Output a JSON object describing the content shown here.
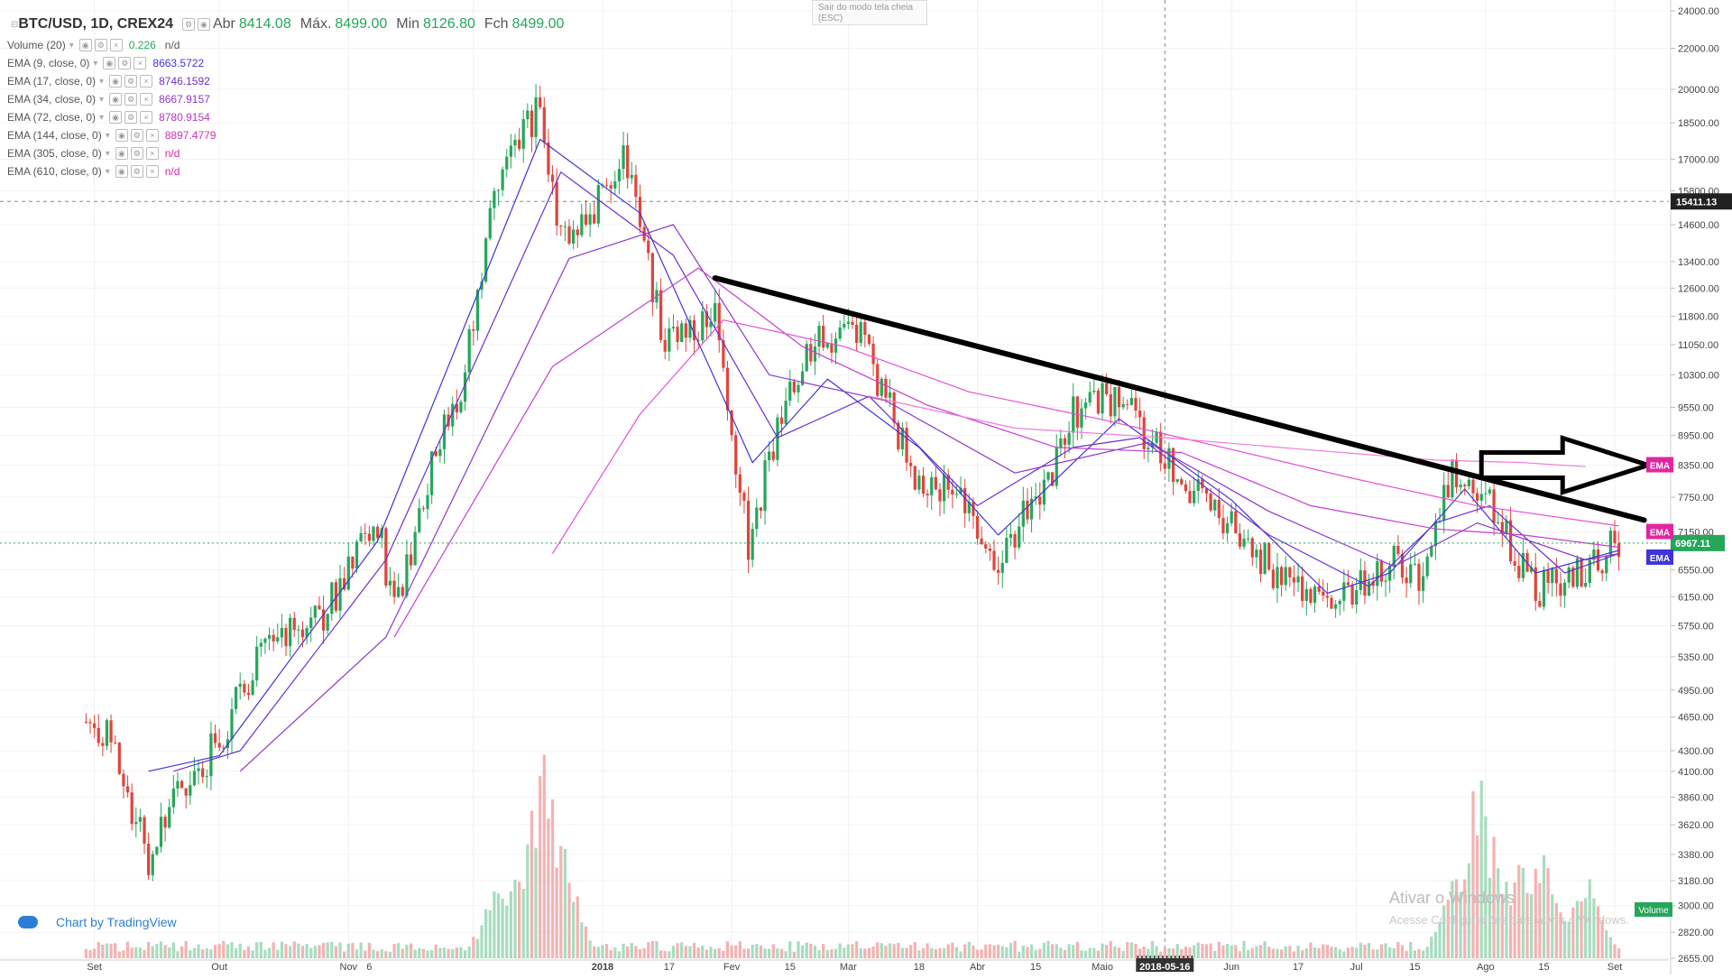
{
  "header": {
    "symbol": "BTC/USD, 1D, CREX24",
    "open_label": "Abr",
    "open_value": "8414.08",
    "high_label": "Máx.",
    "high_value": "8499.00",
    "low_label": "Min",
    "low_value": "8126.80",
    "close_label": "Fch",
    "close_value": "8499.00"
  },
  "indicators": [
    {
      "label": "Volume (20)",
      "value": "0.226",
      "extra": "n/d",
      "color": "#26a65b"
    },
    {
      "label": "EMA (9, close, 0)",
      "value": "8663.5722",
      "color": "#3f35d6"
    },
    {
      "label": "EMA (17, close, 0)",
      "value": "8746.1592",
      "color": "#6d2fd1"
    },
    {
      "label": "EMA (34, close, 0)",
      "value": "8667.9157",
      "color": "#8c37c9"
    },
    {
      "label": "EMA (72, close, 0)",
      "value": "8780.9154",
      "color": "#b437c4"
    },
    {
      "label": "EMA (144, close, 0)",
      "value": "8897.4779",
      "color": "#d22fb3"
    },
    {
      "label": "EMA (305, close, 0)",
      "value": "n/d",
      "color": "#e0269f"
    },
    {
      "label": "EMA (610, close, 0)",
      "value": "n/d",
      "color": "#e0269f"
    }
  ],
  "fullscreen_hint": "Sair do modo tela cheia (ESC)",
  "brand": "Chart by TradingView",
  "watermark": {
    "line1": "Ativar o Windows",
    "line2": "Acesse Configurações para ativar o Windows."
  },
  "colors": {
    "up": "#26a65b",
    "down": "#e0443b",
    "vol_up": "#a8dcbf",
    "vol_down": "#f4b2b2",
    "crosshair_price": "#222222",
    "current_price": "#26a65b"
  },
  "chart_data": {
    "type": "candlestick",
    "title": "BTC/USD, 1D, CREX24",
    "x_ticks": [
      "Set",
      "Out",
      "Nov",
      "6",
      "2018",
      "17",
      "Fev",
      "15",
      "Mar",
      "18",
      "Abr",
      "15",
      "Maio",
      "2018-05-16",
      "Jun",
      "17",
      "Jul",
      "15",
      "Ago",
      "15",
      "Set"
    ],
    "y_ticks": [
      "24000.00",
      "22000.00",
      "20000.00",
      "18500.00",
      "17000.00",
      "15800.00",
      "14600.00",
      "13400.00",
      "12600.00",
      "11800.00",
      "11050.00",
      "10300.00",
      "9550.00",
      "8950.00",
      "8350.00",
      "7750.00",
      "7150.00",
      "6550.00",
      "6150.00",
      "5750.00",
      "5350.00",
      "4950.00",
      "4650.00",
      "4300.00",
      "4100.00",
      "3860.00",
      "3620.00",
      "3380.00",
      "3180.00",
      "3000.00",
      "2820.00",
      "2655.00"
    ],
    "y_scale": "log",
    "ylim": [
      2655,
      24000
    ],
    "crosshair_price": "15411.13",
    "current_price": "6967.11",
    "badges": [
      "EMA",
      "EMA",
      "EMA",
      "Volume"
    ],
    "anchors": [
      [
        "2017-08-30",
        4600
      ],
      [
        "2017-09-05",
        4500
      ],
      [
        "2017-09-14",
        3300
      ],
      [
        "2017-09-20",
        3850
      ],
      [
        "2017-09-30",
        4350
      ],
      [
        "2017-10-13",
        5600
      ],
      [
        "2017-10-25",
        5800
      ],
      [
        "2017-11-08",
        7300
      ],
      [
        "2017-11-12",
        5900
      ],
      [
        "2017-11-20",
        8100
      ],
      [
        "2017-11-28",
        10000
      ],
      [
        "2017-12-07",
        16500
      ],
      [
        "2017-12-17",
        19300
      ],
      [
        "2017-12-22",
        14000
      ],
      [
        "2017-12-28",
        14600
      ],
      [
        "2018-01-06",
        17100
      ],
      [
        "2018-01-16",
        11200
      ],
      [
        "2018-01-28",
        11700
      ],
      [
        "2018-02-05",
        6900
      ],
      [
        "2018-02-10",
        8500
      ],
      [
        "2018-02-20",
        11100
      ],
      [
        "2018-03-04",
        11400
      ],
      [
        "2018-03-17",
        8100
      ],
      [
        "2018-03-27",
        7900
      ],
      [
        "2018-04-06",
        6700
      ],
      [
        "2018-04-18",
        8100
      ],
      [
        "2018-04-24",
        9500
      ],
      [
        "2018-05-05",
        9800
      ],
      [
        "2018-05-16",
        8500
      ],
      [
        "2018-05-29",
        7400
      ],
      [
        "2018-06-12",
        6500
      ],
      [
        "2018-06-24",
        5900
      ],
      [
        "2018-07-09",
        6700
      ],
      [
        "2018-07-16",
        6400
      ],
      [
        "2018-07-24",
        8200
      ],
      [
        "2018-08-02",
        7700
      ],
      [
        "2018-08-13",
        6200
      ],
      [
        "2018-08-28",
        6700
      ],
      [
        "2018-09-02",
        7050
      ]
    ],
    "ema_lines": [
      {
        "label": "EMA 9",
        "points": [
          [
            "2017-09-14",
            4100
          ],
          [
            "2017-10-01",
            4250
          ],
          [
            "2017-11-08",
            7000
          ],
          [
            "2017-12-17",
            17800
          ],
          [
            "2018-01-10",
            15000
          ],
          [
            "2018-02-06",
            8400
          ],
          [
            "2018-02-24",
            10200
          ],
          [
            "2018-03-18",
            8700
          ],
          [
            "2018-04-06",
            7100
          ],
          [
            "2018-05-05",
            9300
          ],
          [
            "2018-06-01",
            7700
          ],
          [
            "2018-06-24",
            6200
          ],
          [
            "2018-07-09",
            6500
          ],
          [
            "2018-07-27",
            7900
          ],
          [
            "2018-08-13",
            6500
          ],
          [
            "2018-09-02",
            6850
          ]
        ]
      },
      {
        "label": "EMA 17",
        "points": [
          [
            "2017-09-20",
            4100
          ],
          [
            "2017-10-06",
            4300
          ],
          [
            "2017-11-10",
            6700
          ],
          [
            "2017-12-22",
            16500
          ],
          [
            "2018-01-18",
            13600
          ],
          [
            "2018-02-12",
            8900
          ],
          [
            "2018-03-06",
            9800
          ],
          [
            "2018-04-01",
            7600
          ],
          [
            "2018-04-24",
            8700
          ],
          [
            "2018-05-10",
            8900
          ],
          [
            "2018-06-10",
            7100
          ],
          [
            "2018-07-04",
            6300
          ],
          [
            "2018-07-20",
            7300
          ],
          [
            "2018-08-02",
            7600
          ],
          [
            "2018-08-20",
            6500
          ],
          [
            "2018-09-02",
            6800
          ]
        ]
      },
      {
        "label": "EMA 34",
        "points": [
          [
            "2017-10-06",
            4100
          ],
          [
            "2017-11-10",
            5600
          ],
          [
            "2017-12-24",
            13500
          ],
          [
            "2018-01-18",
            14600
          ],
          [
            "2018-02-10",
            10300
          ],
          [
            "2018-03-10",
            9700
          ],
          [
            "2018-04-10",
            8200
          ],
          [
            "2018-05-12",
            8800
          ],
          [
            "2018-06-10",
            7500
          ],
          [
            "2018-07-10",
            6600
          ],
          [
            "2018-07-30",
            7300
          ],
          [
            "2018-08-25",
            6700
          ],
          [
            "2018-09-02",
            6800
          ]
        ]
      },
      {
        "label": "EMA 72",
        "points": [
          [
            "2017-11-12",
            5600
          ],
          [
            "2017-12-20",
            10500
          ],
          [
            "2018-01-24",
            13200
          ],
          [
            "2018-02-18",
            11000
          ],
          [
            "2018-03-20",
            9600
          ],
          [
            "2018-04-20",
            8700
          ],
          [
            "2018-05-20",
            8600
          ],
          [
            "2018-06-20",
            7600
          ],
          [
            "2018-07-20",
            7200
          ],
          [
            "2018-08-10",
            7100
          ],
          [
            "2018-09-02",
            6900
          ]
        ]
      },
      {
        "label": "EMA 144",
        "points": [
          [
            "2017-12-20",
            6800
          ],
          [
            "2018-01-10",
            9400
          ],
          [
            "2018-01-30",
            11700
          ],
          [
            "2018-02-28",
            11000
          ],
          [
            "2018-03-30",
            9900
          ],
          [
            "2018-04-30",
            9300
          ],
          [
            "2018-05-30",
            8700
          ],
          [
            "2018-06-30",
            8100
          ],
          [
            "2018-07-30",
            7600
          ],
          [
            "2018-09-02",
            7250
          ]
        ]
      },
      {
        "label": "EMA 144b",
        "points": [
          [
            "2018-03-06",
            9800
          ],
          [
            "2018-04-10",
            9100
          ],
          [
            "2018-05-16",
            8900
          ],
          [
            "2018-06-20",
            8650
          ],
          [
            "2018-07-20",
            8450
          ],
          [
            "2018-08-10",
            8400
          ],
          [
            "2018-08-25",
            8320
          ]
        ]
      }
    ],
    "trendline": {
      "from": [
        "2018-01-28",
        12900
      ],
      "to": [
        "2018-09-02",
        7350
      ]
    },
    "volume_peaks": [
      [
        "2017-12-07",
        0.3
      ],
      [
        "2017-12-13",
        0.42
      ],
      [
        "2017-12-18",
        0.88
      ],
      [
        "2017-12-22",
        0.55
      ],
      [
        "2018-07-25",
        0.35
      ],
      [
        "2018-07-30",
        0.82
      ],
      [
        "2018-08-03",
        0.55
      ],
      [
        "2018-08-10",
        0.45
      ],
      [
        "2018-08-15",
        0.48
      ],
      [
        "2018-08-25",
        0.38
      ]
    ]
  }
}
